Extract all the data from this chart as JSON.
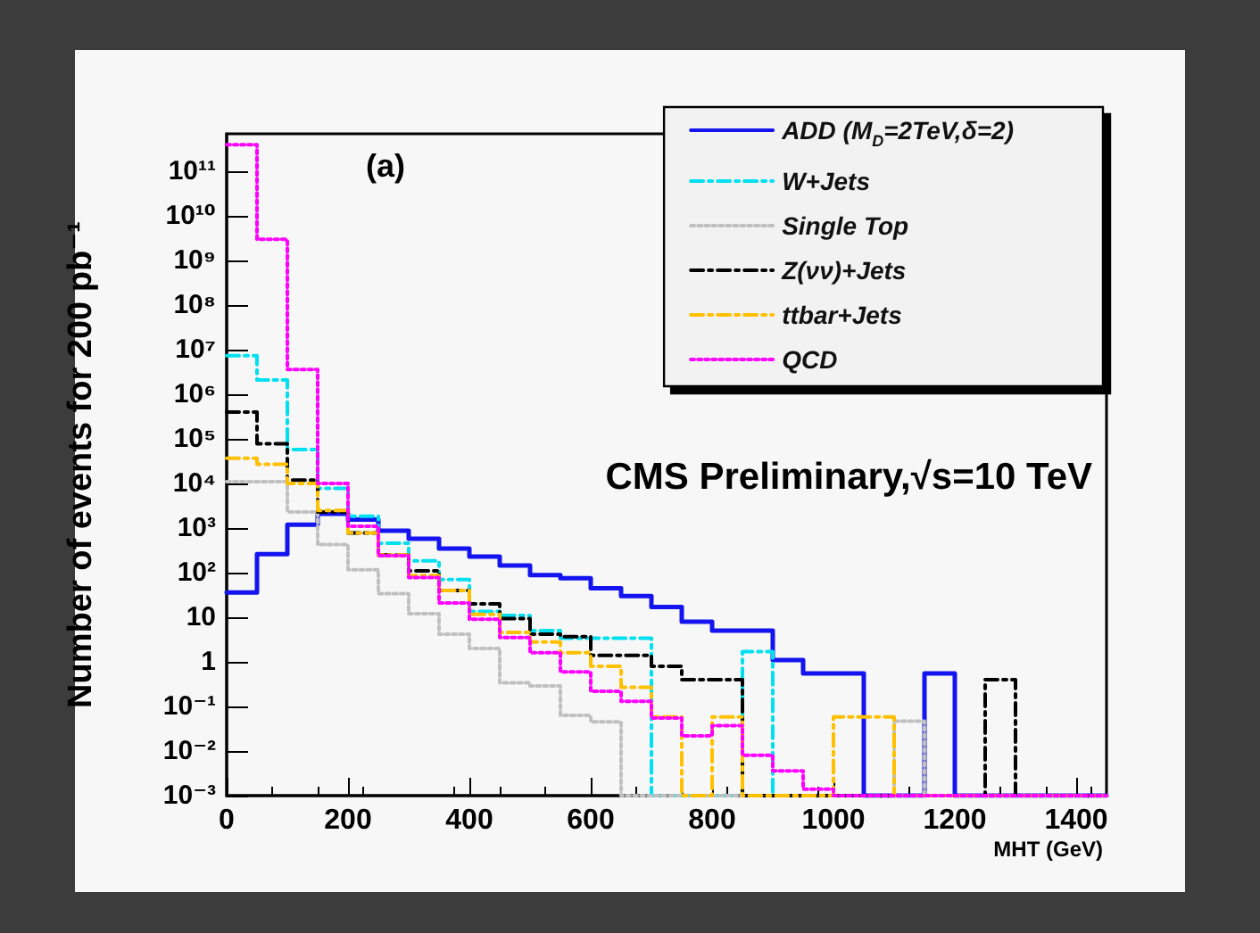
{
  "chart_data": {
    "type": "histogram",
    "xlabel": "MHT (GeV)",
    "ylabel": "Number of events for 200 pb⁻¹",
    "annotations": [
      "(a)",
      "CMS Preliminary,√s=10 TeV"
    ],
    "bins": [
      0,
      50,
      100,
      150,
      200,
      250,
      300,
      350,
      400,
      450,
      500,
      550,
      600,
      650,
      700,
      750,
      800,
      850,
      900,
      950,
      1000,
      1050,
      1100,
      1150,
      1200,
      1250,
      1300,
      1350,
      1400,
      1450
    ],
    "series": [
      {
        "name": "ADD (M$_{D}$=2TeV,δ=2)",
        "color": "#1414f0",
        "line_style": "solid",
        "values": [
          36,
          260,
          1200,
          2100,
          1550,
          880,
          580,
          350,
          230,
          145,
          88,
          75,
          45,
          30,
          17,
          8,
          5,
          5,
          1.1,
          0.55,
          0.55,
          null,
          null,
          0.55,
          null,
          null,
          null,
          null,
          null
        ]
      },
      {
        "name": "W+Jets",
        "color": "#00e0f0",
        "line_style": "dashed",
        "values": [
          7400000,
          2100000,
          58000,
          7800,
          1850,
          460,
          185,
          70,
          13.5,
          11,
          5,
          3.4,
          3.4,
          3.4,
          null,
          null,
          null,
          1.7,
          null,
          null,
          null,
          null,
          null,
          null,
          null,
          null,
          null,
          null,
          null
        ]
      },
      {
        "name": "Single Top",
        "color": "#c0c0c0",
        "line_style": "dotted",
        "values": [
          11000,
          11000,
          2300,
          430,
          117,
          34,
          12,
          4.2,
          2,
          0.34,
          0.29,
          0.063,
          0.045,
          null,
          null,
          null,
          null,
          null,
          null,
          null,
          null,
          null,
          0.047,
          null,
          null,
          null,
          null,
          null,
          null
        ]
      },
      {
        "name": "Z(νν)+Jets",
        "color": "#000000",
        "line_style": "dashed",
        "values": [
          400000,
          78000,
          12000,
          2300,
          780,
          250,
          110,
          40,
          20,
          9.4,
          4.2,
          3.7,
          1.4,
          1.4,
          0.8,
          0.4,
          0.4,
          null,
          null,
          null,
          null,
          null,
          null,
          null,
          null,
          0.4,
          null,
          null,
          null
        ]
      },
      {
        "name": "ttbar+Jets",
        "color": "#ffc000",
        "line_style": "dashed",
        "values": [
          37000,
          27000,
          10000,
          2500,
          780,
          250,
          86,
          40,
          11.7,
          4.6,
          2.8,
          1.6,
          0.8,
          0.27,
          0.058,
          null,
          0.058,
          null,
          null,
          null,
          0.058,
          0.058,
          null,
          null,
          null,
          null,
          null,
          null,
          null
        ]
      },
      {
        "name": "QCD",
        "color": "#ff00ff",
        "line_style": "dotted",
        "values": [
          400000000000,
          3000000000,
          3600000,
          10000,
          1100,
          240,
          78,
          21,
          9,
          3.5,
          1.6,
          0.6,
          0.22,
          0.13,
          0.055,
          0.022,
          0.037,
          0.008,
          0.0036,
          0.0014,
          null,
          null,
          null,
          null,
          null,
          null,
          null,
          null,
          null
        ]
      }
    ],
    "xlim": [
      0,
      1450
    ],
    "xticks": [
      0,
      200,
      400,
      600,
      800,
      1000,
      1200,
      1400
    ],
    "ylim": [
      0.001,
      700000000000
    ],
    "yticks": [
      {
        "value": 0.001,
        "label": "10⁻³"
      },
      {
        "value": 0.01,
        "label": "10⁻²"
      },
      {
        "value": 0.1,
        "label": "10⁻¹"
      },
      1,
      10,
      {
        "value": 100,
        "label": "10²"
      },
      {
        "value": 1000,
        "label": "10³"
      },
      {
        "value": 10000,
        "label": "10⁴"
      },
      {
        "value": 100000,
        "label": "10⁵"
      },
      {
        "value": 1000000,
        "label": "10⁶"
      },
      {
        "value": 10000000,
        "label": "10⁷"
      },
      {
        "value": 100000000,
        "label": "10⁸"
      },
      {
        "value": 1000000000,
        "label": "10⁹"
      },
      {
        "value": 10000000000,
        "label": "10¹⁰"
      },
      {
        "value": 100000000000,
        "label": "10¹¹"
      }
    ],
    "log": "y",
    "legend": "top right"
  }
}
